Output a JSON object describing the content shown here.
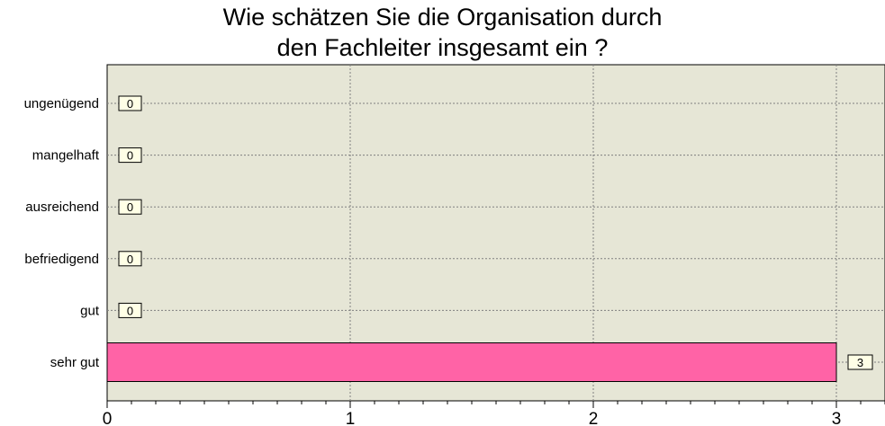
{
  "chart_data": {
    "type": "bar",
    "orientation": "horizontal",
    "title_lines": [
      "Wie schätzen Sie die Organisation durch",
      "den Fachleiter insgesamt ein ?"
    ],
    "categories": [
      "ungenügend",
      "mangelhaft",
      "ausreichend",
      "befriedigend",
      "gut",
      "sehr gut"
    ],
    "values": [
      0,
      0,
      0,
      0,
      0,
      3
    ],
    "xlim": [
      0,
      3.2
    ],
    "xticks": [
      0,
      1,
      2,
      3
    ],
    "grid": true,
    "bar_color": "#ff63a6",
    "plot_background": "#e6e6d6",
    "data_labels": true
  }
}
